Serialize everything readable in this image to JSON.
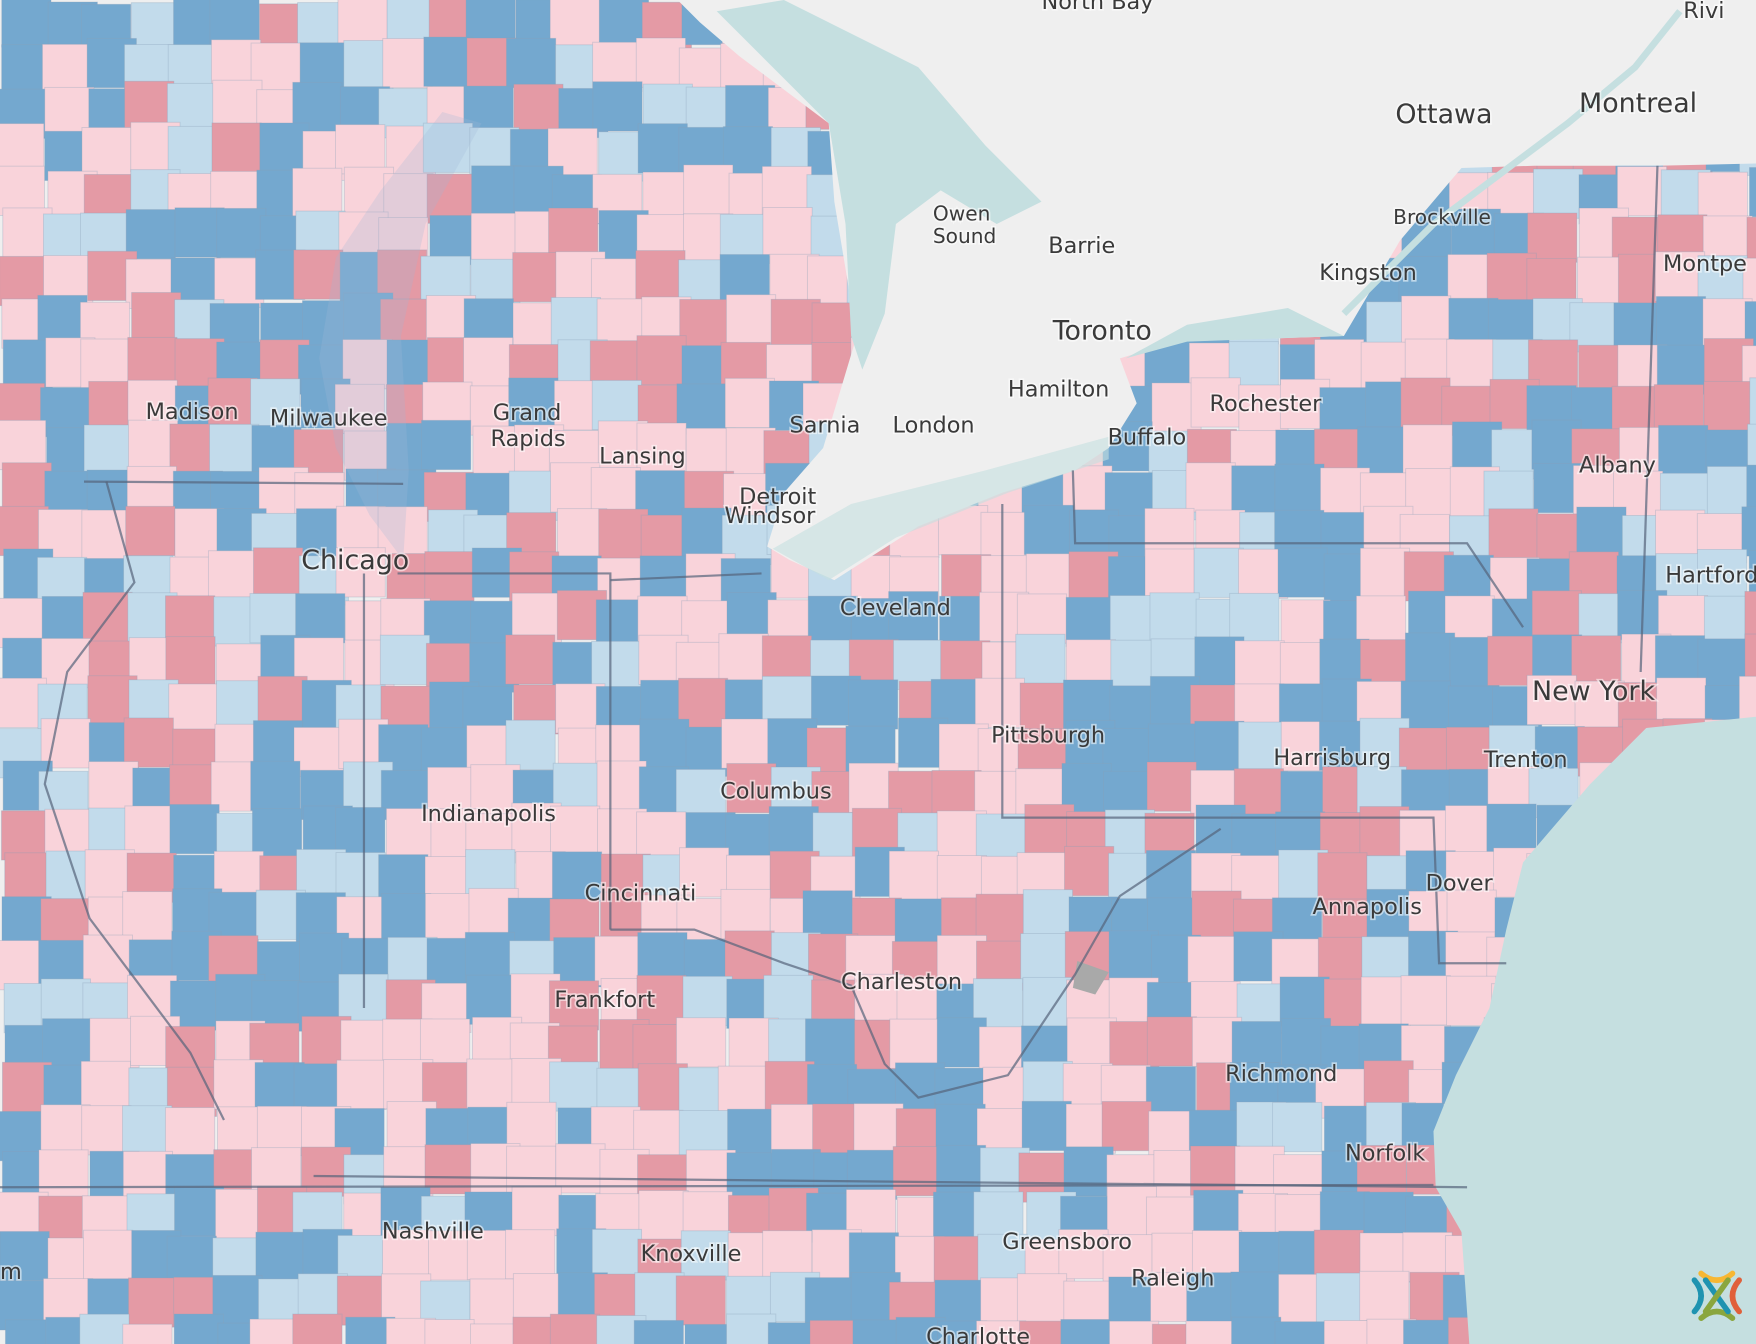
{
  "map": {
    "colors": {
      "strong_red": "#e49aa5",
      "light_red": "#f9d3da",
      "light_blue": "#c2dbeb",
      "strong_blue": "#74a8cf",
      "no_data": "#a9a9a9",
      "water": "#c5dfe0",
      "land_outside": "#efefef"
    },
    "labels": {
      "north_bay": "North Bay",
      "rivi": "Rivi",
      "ottawa": "Ottawa",
      "montreal": "Montreal",
      "owen": "Owen",
      "sound": "Sound",
      "barrie": "Barrie",
      "brockville": "Brockville",
      "kingston": "Kingston",
      "montpe": "Montpe",
      "toronto": "Toronto",
      "hamilton": "Hamilton",
      "london": "London",
      "sarnia": "Sarnia",
      "rochester": "Rochester",
      "buffalo": "Buffalo",
      "albany": "Albany",
      "madison": "Madison",
      "milwaukee": "Milwaukee",
      "grand": "Grand",
      "rapids": "Rapids",
      "lansing": "Lansing",
      "detroit": "Detroit",
      "windsor": "Windsor",
      "chicago": "Chicago",
      "hartford": "Hartford",
      "cleveland": "Cleveland",
      "new_york": "New York",
      "pittsburgh": "Pittsburgh",
      "harrisburg": "Harrisburg",
      "trenton": "Trenton",
      "columbus": "Columbus",
      "indianapolis": "Indianapolis",
      "dover": "Dover",
      "cincinnati": "Cincinnati",
      "annapolis": "Annapolis",
      "charleston": "Charleston",
      "frankfort": "Frankfort",
      "richmond": "Richmond",
      "norfolk": "Norfolk",
      "nashville": "Nashville",
      "knoxville": "Knoxville",
      "greensboro": "Greensboro",
      "raleigh": "Raleigh",
      "charlotte": "Charlotte",
      "edge_m": "m"
    },
    "logo": "esri-style-logo-icon"
  }
}
